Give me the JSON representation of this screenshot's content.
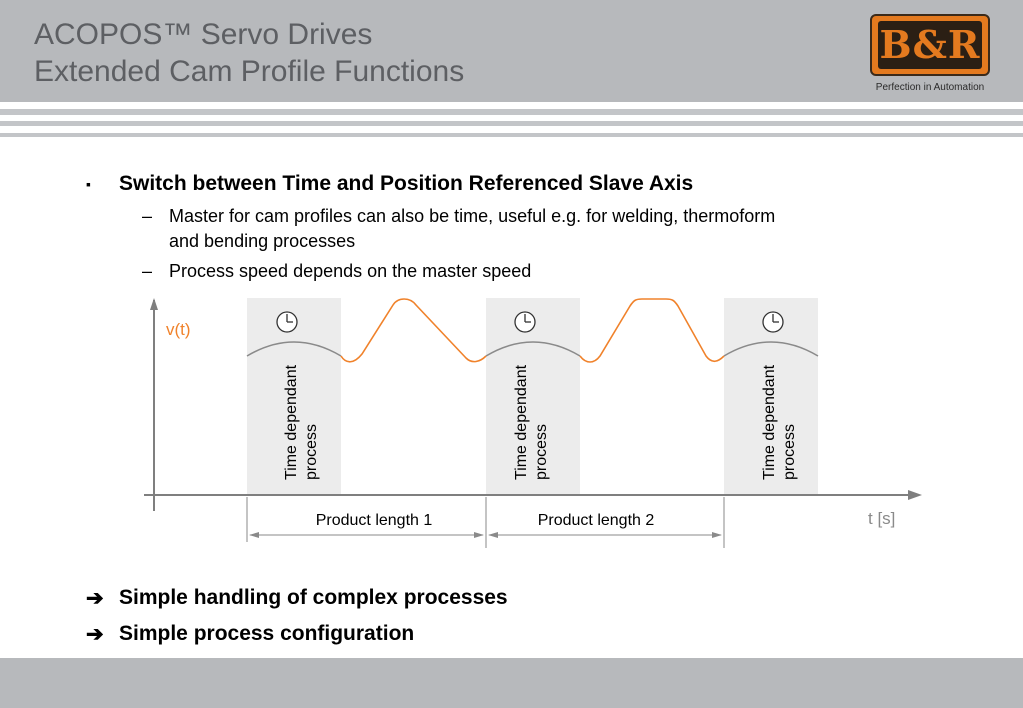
{
  "header": {
    "title_line1": "ACOPOS™ Servo Drives",
    "title_line2": "Extended Cam Profile Functions",
    "logo_text": "B&R",
    "tagline": "Perfection in Automation"
  },
  "content": {
    "bullet_marker": "▪",
    "bullet1": "Switch between Time and Position Referenced Slave Axis",
    "sub_marker": "–",
    "sub1_line1": "Master for cam profiles can also be time, useful e.g. for welding, thermoform",
    "sub1_line2": "and bending processes",
    "sub2": "Process speed depends on the master speed"
  },
  "diagram": {
    "y_axis_label": "v(t)",
    "x_axis_label": "t [s]",
    "zone_label_line1": "Time dependant",
    "zone_label_line2": "process",
    "length1": "Product length 1",
    "length2": "Product length 2",
    "colors": {
      "curve": "#f0822b",
      "zone": "#ececec",
      "axis": "#7f7f7f",
      "arc": "#8a8a8a"
    },
    "icon": "clock-icon"
  },
  "conclusions": {
    "arrow": "➔",
    "item1": "Simple handling of complex processes",
    "item2": "Simple process configuration"
  }
}
